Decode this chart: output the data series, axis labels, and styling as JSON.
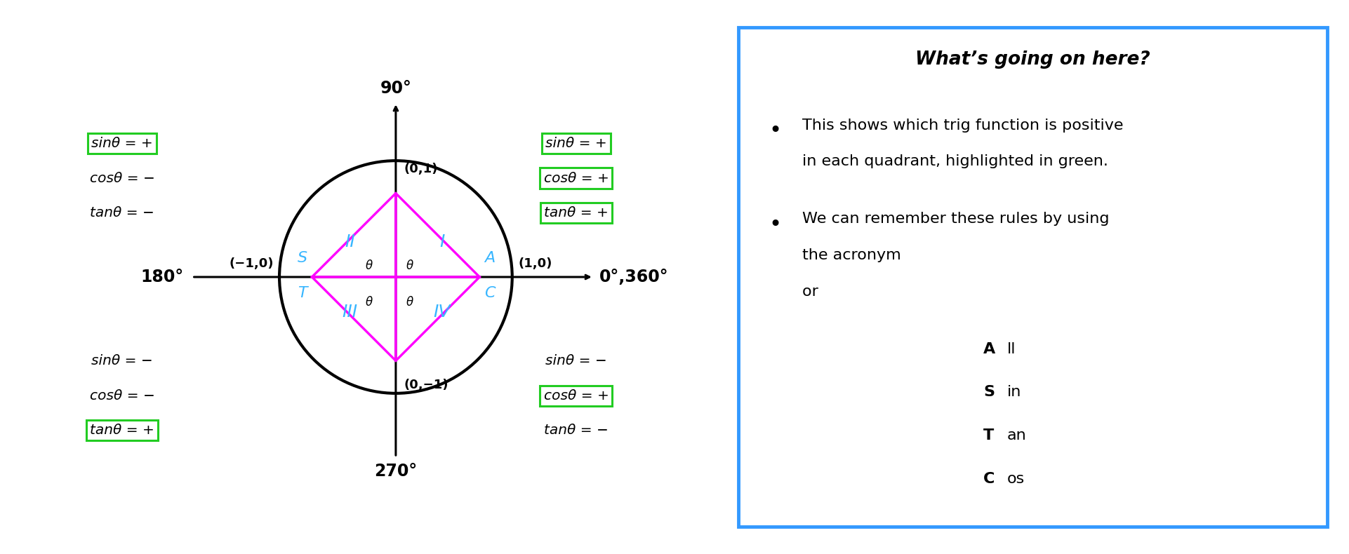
{
  "circle_color": "#000000",
  "magenta": "#FF00FF",
  "cyan": "#38B6FF",
  "green_box": "#22CC22",
  "blue_box": "#3399FF",
  "q1_trig": [
    "sinθ = +",
    "cosθ = +",
    "tanθ = +"
  ],
  "q2_trig": [
    "sinθ = +",
    "cosθ = −",
    "tanθ = −"
  ],
  "q3_trig": [
    "sinθ = −",
    "cosθ = −",
    "tanθ = +"
  ],
  "q4_trig": [
    "sinθ = −",
    "cosθ = +",
    "tanθ = −"
  ],
  "q1_green": [
    0,
    1,
    2
  ],
  "q2_green": [
    0
  ],
  "q3_green": [
    2
  ],
  "q4_green": [
    1
  ],
  "right_panel_title": "What’s going on here?",
  "astc_lines": [
    [
      "A",
      "ll"
    ],
    [
      "S",
      "in"
    ],
    [
      "T",
      "an"
    ],
    [
      "C",
      "os"
    ]
  ]
}
